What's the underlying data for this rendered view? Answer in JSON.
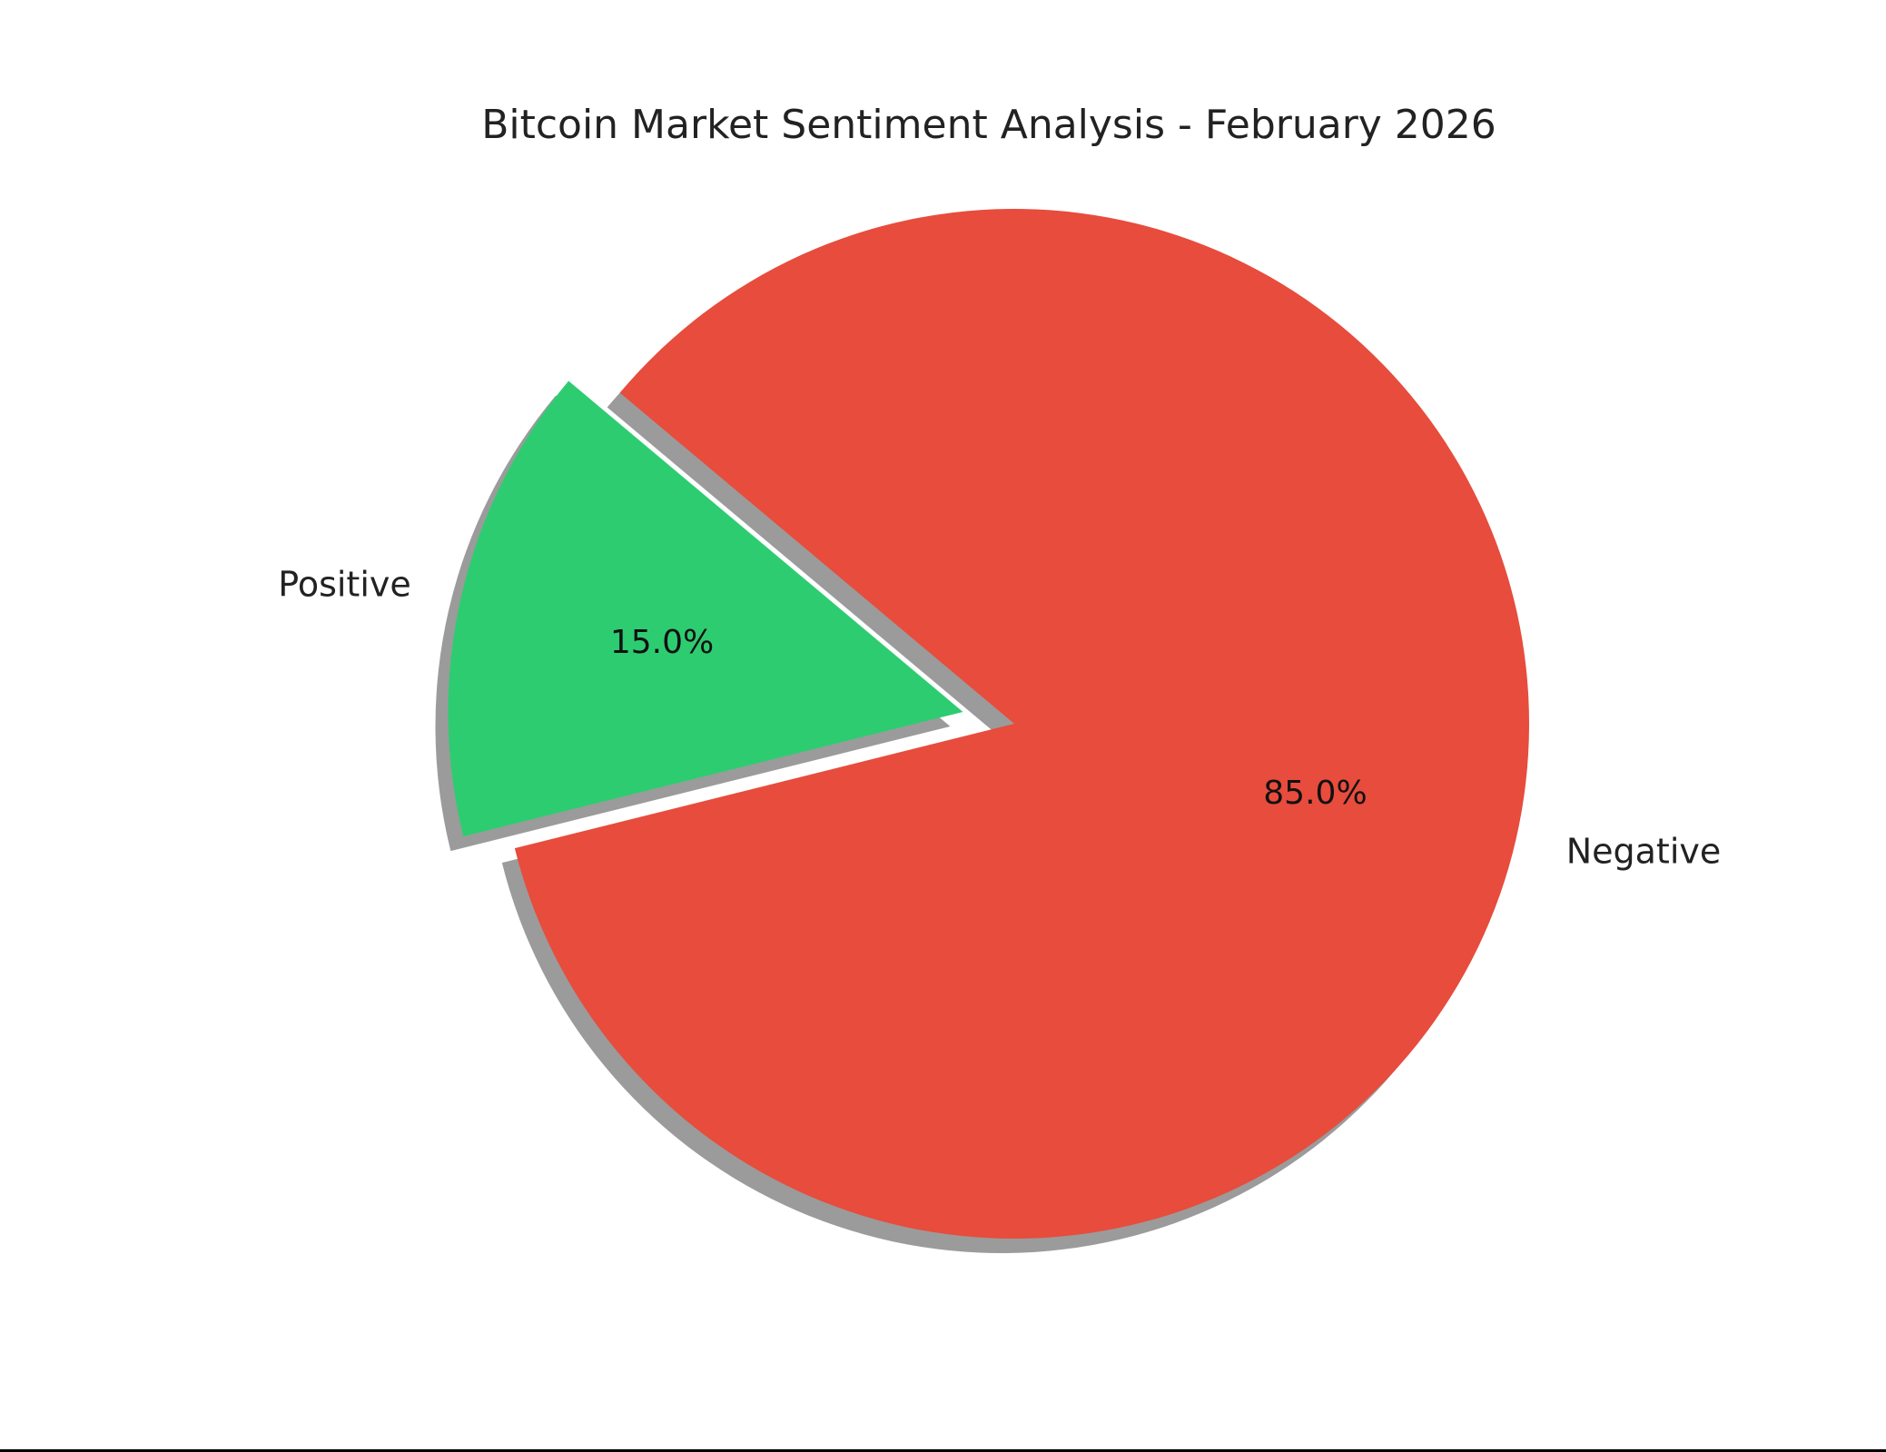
{
  "chart_data": {
    "type": "pie",
    "title": "Bitcoin Market Sentiment Analysis - February 2026",
    "slices": [
      {
        "label": "Negative",
        "value": 85.0,
        "pct_label": "85.0%",
        "color": "#E74C3C",
        "exploded": false
      },
      {
        "label": "Positive",
        "value": 15.0,
        "pct_label": "15.0%",
        "color": "#2ECC71",
        "exploded": true
      }
    ],
    "shadow": true,
    "legend": "none"
  }
}
